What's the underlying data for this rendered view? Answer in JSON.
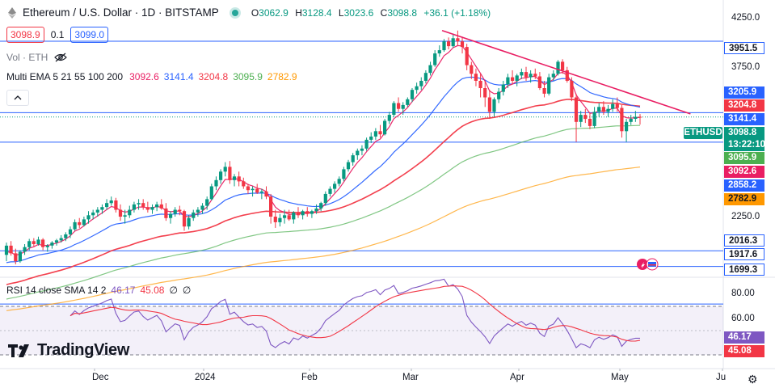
{
  "header": {
    "title": "Ethereum / U.S. Dollar · 1D · BITSTAMP",
    "open_label": "O",
    "open": "3062.9",
    "high_label": "H",
    "high": "3128.4",
    "low_label": "L",
    "low": "3023.6",
    "close_label": "C",
    "close": "3098.8",
    "change": "+36.1 (+1.18%)"
  },
  "quote": {
    "sell": "3098.9",
    "spread": "0.1",
    "buy": "3099.0"
  },
  "volume_indicator": {
    "label": "Vol · ETH",
    "icon": "eye-crossed-icon"
  },
  "ema_indicator": {
    "label": "Multi EMA 5 21 55 100 200",
    "values": [
      {
        "value": "3092.6",
        "color": "#e91e63"
      },
      {
        "value": "3141.4",
        "color": "#2962ff"
      },
      {
        "value": "3204.8",
        "color": "#f23645"
      },
      {
        "value": "3095.9",
        "color": "#4caf50"
      },
      {
        "value": "2782.9",
        "color": "#ff9800"
      }
    ]
  },
  "rsi_indicator": {
    "label": "RSI 14 close SMA 14 2",
    "values": [
      {
        "value": "46.17",
        "color": "#7e57c2"
      },
      {
        "value": "45.08",
        "color": "#f23645"
      },
      {
        "value": "∅",
        "color": "#131722"
      },
      {
        "value": "∅",
        "color": "#131722"
      }
    ]
  },
  "price_axis": {
    "ticks": [
      "4250.0",
      "3750.0",
      "2250.0"
    ],
    "labels": [
      {
        "text": "3951.5",
        "bg": "#ffffff",
        "fg": "#131722",
        "border": "#2962ff"
      },
      {
        "text": "3205.9",
        "bg": "#2962ff",
        "fg": "#ffffff"
      },
      {
        "text": "3204.8",
        "bg": "#f23645",
        "fg": "#ffffff"
      },
      {
        "text": "3141.4",
        "bg": "#2962ff",
        "fg": "#ffffff"
      },
      {
        "text": "3098.8",
        "bg": "#089981",
        "fg": "#ffffff"
      },
      {
        "text": "13:22:10",
        "bg": "#089981",
        "fg": "#ffffff"
      },
      {
        "text": "3095.9",
        "bg": "#4caf50",
        "fg": "#ffffff"
      },
      {
        "text": "3092.6",
        "bg": "#e91e63",
        "fg": "#ffffff"
      },
      {
        "text": "2858.2",
        "bg": "#2962ff",
        "fg": "#ffffff"
      },
      {
        "text": "2782.9",
        "bg": "#ff9800",
        "fg": "#131722"
      },
      {
        "text": "2016.3",
        "bg": "#ffffff",
        "fg": "#131722",
        "border": "#2962ff"
      },
      {
        "text": "1917.6",
        "bg": "#ffffff",
        "fg": "#131722",
        "border": "#2962ff"
      },
      {
        "text": "1699.3",
        "bg": "#ffffff",
        "fg": "#131722",
        "border": "#2962ff"
      }
    ],
    "symbol_tag": "ETHUSD"
  },
  "rsi_axis": {
    "ticks": [
      "80.00",
      "60.00"
    ],
    "labels": [
      {
        "text": "46.17",
        "bg": "#7e57c2",
        "fg": "#ffffff"
      },
      {
        "text": "45.08",
        "bg": "#f23645",
        "fg": "#ffffff"
      }
    ]
  },
  "time_axis": {
    "labels": [
      "Dec",
      "2024",
      "Feb",
      "Mar",
      "Apr",
      "May",
      "Ju"
    ]
  },
  "branding": {
    "logo_text": "TradingView"
  },
  "chart_data": {
    "type": "candlestick",
    "title": "Ethereum / U.S. Dollar · 1D · BITSTAMP",
    "x_range": [
      "2023-11-12",
      "2024-05-06"
    ],
    "y_range": [
      1650,
      4300
    ],
    "horizontal_levels": [
      3951.5,
      3141.4,
      3098.8,
      2858.2,
      2016.3,
      1917.6,
      1699.3
    ],
    "trendline": {
      "from": [
        "2024-03-12",
        4090
      ],
      "to": [
        "2024-05-20",
        3130
      ],
      "color": "#e91e63"
    },
    "candles": [
      [
        1990,
        2070,
        1950,
        2050
      ],
      [
        2050,
        2080,
        1985,
        2000
      ],
      [
        2000,
        2030,
        1930,
        1950
      ],
      [
        1950,
        2020,
        1940,
        2010
      ],
      [
        2010,
        2060,
        1990,
        2040
      ],
      [
        2040,
        2095,
        2020,
        2080
      ],
      [
        2080,
        2100,
        2045,
        2060
      ],
      [
        2060,
        2110,
        2050,
        2090
      ],
      [
        2090,
        2100,
        2020,
        2040
      ],
      [
        2040,
        2060,
        2010,
        2050
      ],
      [
        2050,
        2080,
        2030,
        2070
      ],
      [
        2070,
        2095,
        2050,
        2085
      ],
      [
        2085,
        2120,
        2070,
        2100
      ],
      [
        2100,
        2140,
        2080,
        2125
      ],
      [
        2125,
        2180,
        2100,
        2160
      ],
      [
        2160,
        2230,
        2150,
        2210
      ],
      [
        2210,
        2240,
        2170,
        2190
      ],
      [
        2190,
        2250,
        2180,
        2230
      ],
      [
        2230,
        2290,
        2200,
        2260
      ],
      [
        2260,
        2300,
        2230,
        2280
      ],
      [
        2280,
        2320,
        2250,
        2300
      ],
      [
        2300,
        2340,
        2270,
        2320
      ],
      [
        2320,
        2380,
        2300,
        2350
      ],
      [
        2350,
        2400,
        2330,
        2370
      ],
      [
        2370,
        2390,
        2280,
        2300
      ],
      [
        2300,
        2340,
        2220,
        2250
      ],
      [
        2250,
        2300,
        2200,
        2260
      ],
      [
        2260,
        2330,
        2240,
        2300
      ],
      [
        2300,
        2360,
        2280,
        2340
      ],
      [
        2340,
        2380,
        2300,
        2350
      ],
      [
        2350,
        2380,
        2300,
        2320
      ],
      [
        2320,
        2360,
        2280,
        2300
      ],
      [
        2300,
        2340,
        2270,
        2320
      ],
      [
        2320,
        2360,
        2290,
        2340
      ],
      [
        2340,
        2380,
        2300,
        2310
      ],
      [
        2310,
        2350,
        2220,
        2240
      ],
      [
        2240,
        2290,
        2200,
        2270
      ],
      [
        2270,
        2320,
        2250,
        2300
      ],
      [
        2300,
        2330,
        2260,
        2290
      ],
      [
        2290,
        2300,
        2150,
        2180
      ],
      [
        2180,
        2260,
        2160,
        2240
      ],
      [
        2240,
        2300,
        2220,
        2280
      ],
      [
        2280,
        2320,
        2250,
        2300
      ],
      [
        2300,
        2350,
        2270,
        2330
      ],
      [
        2330,
        2400,
        2300,
        2380
      ],
      [
        2380,
        2500,
        2370,
        2480
      ],
      [
        2480,
        2560,
        2450,
        2530
      ],
      [
        2530,
        2620,
        2500,
        2600
      ],
      [
        2600,
        2680,
        2560,
        2640
      ],
      [
        2640,
        2690,
        2500,
        2530
      ],
      [
        2530,
        2580,
        2480,
        2560
      ],
      [
        2560,
        2600,
        2480,
        2520
      ],
      [
        2520,
        2550,
        2460,
        2480
      ],
      [
        2480,
        2500,
        2420,
        2450
      ],
      [
        2450,
        2480,
        2400,
        2460
      ],
      [
        2460,
        2500,
        2420,
        2430
      ],
      [
        2430,
        2460,
        2380,
        2440
      ],
      [
        2440,
        2480,
        2380,
        2400
      ],
      [
        2400,
        2420,
        2200,
        2250
      ],
      [
        2250,
        2300,
        2170,
        2210
      ],
      [
        2210,
        2270,
        2180,
        2240
      ],
      [
        2240,
        2300,
        2200,
        2260
      ],
      [
        2260,
        2300,
        2220,
        2230
      ],
      [
        2230,
        2290,
        2200,
        2280
      ],
      [
        2280,
        2320,
        2240,
        2260
      ],
      [
        2260,
        2300,
        2230,
        2290
      ],
      [
        2290,
        2320,
        2250,
        2270
      ],
      [
        2270,
        2300,
        2240,
        2290
      ],
      [
        2290,
        2340,
        2270,
        2310
      ],
      [
        2310,
        2360,
        2290,
        2350
      ],
      [
        2350,
        2440,
        2330,
        2420
      ],
      [
        2420,
        2480,
        2400,
        2460
      ],
      [
        2460,
        2520,
        2430,
        2500
      ],
      [
        2500,
        2560,
        2480,
        2540
      ],
      [
        2540,
        2640,
        2520,
        2620
      ],
      [
        2620,
        2700,
        2600,
        2680
      ],
      [
        2680,
        2760,
        2650,
        2740
      ],
      [
        2740,
        2800,
        2700,
        2780
      ],
      [
        2780,
        2830,
        2740,
        2800
      ],
      [
        2800,
        2900,
        2780,
        2880
      ],
      [
        2880,
        2950,
        2850,
        2910
      ],
      [
        2910,
        2990,
        2880,
        2960
      ],
      [
        2960,
        3020,
        2900,
        2930
      ],
      [
        2930,
        3080,
        2920,
        3060
      ],
      [
        3060,
        3150,
        3030,
        3120
      ],
      [
        3120,
        3260,
        3100,
        3240
      ],
      [
        3240,
        3300,
        3150,
        3180
      ],
      [
        3180,
        3250,
        3120,
        3220
      ],
      [
        3220,
        3300,
        3200,
        3280
      ],
      [
        3280,
        3400,
        3250,
        3380
      ],
      [
        3380,
        3460,
        3340,
        3420
      ],
      [
        3420,
        3520,
        3380,
        3480
      ],
      [
        3480,
        3600,
        3450,
        3570
      ],
      [
        3570,
        3700,
        3540,
        3660
      ],
      [
        3660,
        3840,
        3640,
        3800
      ],
      [
        3800,
        3900,
        3760,
        3840
      ],
      [
        3840,
        3980,
        3820,
        3950
      ],
      [
        3950,
        4000,
        3850,
        3890
      ],
      [
        3890,
        4050,
        3870,
        3990
      ],
      [
        3990,
        4090,
        3900,
        3950
      ],
      [
        3950,
        4010,
        3800,
        3880
      ],
      [
        3880,
        3920,
        3600,
        3660
      ],
      [
        3660,
        3700,
        3500,
        3560
      ],
      [
        3560,
        3620,
        3420,
        3480
      ],
      [
        3480,
        3560,
        3300,
        3400
      ],
      [
        3400,
        3480,
        3200,
        3300
      ],
      [
        3300,
        3380,
        3080,
        3150
      ],
      [
        3150,
        3300,
        3100,
        3280
      ],
      [
        3280,
        3400,
        3240,
        3360
      ],
      [
        3360,
        3480,
        3320,
        3440
      ],
      [
        3440,
        3560,
        3400,
        3520
      ],
      [
        3520,
        3600,
        3440,
        3480
      ],
      [
        3480,
        3560,
        3420,
        3540
      ],
      [
        3540,
        3620,
        3500,
        3580
      ],
      [
        3580,
        3640,
        3480,
        3520
      ],
      [
        3520,
        3600,
        3460,
        3560
      ],
      [
        3560,
        3620,
        3500,
        3530
      ],
      [
        3530,
        3580,
        3380,
        3400
      ],
      [
        3400,
        3480,
        3300,
        3340
      ],
      [
        3340,
        3560,
        3320,
        3520
      ],
      [
        3520,
        3600,
        3480,
        3560
      ],
      [
        3560,
        3720,
        3540,
        3700
      ],
      [
        3700,
        3730,
        3560,
        3600
      ],
      [
        3600,
        3640,
        3460,
        3480
      ],
      [
        3480,
        3520,
        3260,
        3300
      ],
      [
        3300,
        3340,
        2860,
        3050
      ],
      [
        3050,
        3160,
        3000,
        3120
      ],
      [
        3120,
        3180,
        3040,
        3080
      ],
      [
        3080,
        3140,
        2980,
        3010
      ],
      [
        3010,
        3200,
        2990,
        3150
      ],
      [
        3150,
        3240,
        3100,
        3200
      ],
      [
        3200,
        3260,
        3120,
        3150
      ],
      [
        3150,
        3220,
        3100,
        3180
      ],
      [
        3180,
        3280,
        3150,
        3230
      ],
      [
        3230,
        3300,
        3150,
        3190
      ],
      [
        3190,
        3220,
        2900,
        2960
      ],
      [
        2960,
        3080,
        2860,
        3050
      ],
      [
        3050,
        3120,
        3020,
        3080
      ],
      [
        3080,
        3160,
        3050,
        3100
      ],
      [
        3100,
        3128,
        3024,
        3099
      ]
    ],
    "ema_series": [
      {
        "name": "EMA 5",
        "color": "#e91e63",
        "last": 3092.6
      },
      {
        "name": "EMA 21",
        "color": "#2962ff",
        "last": 3141.4
      },
      {
        "name": "EMA 55",
        "color": "#f23645",
        "last": 3204.8
      },
      {
        "name": "EMA 100",
        "color": "#4caf50",
        "last": 3095.9
      },
      {
        "name": "EMA 200",
        "color": "#ff9800",
        "last": 2782.9
      }
    ],
    "rsi": {
      "upper_band": 70,
      "lower_band": 30,
      "rsi_last": 46.17,
      "sma_last": 45.08
    }
  }
}
